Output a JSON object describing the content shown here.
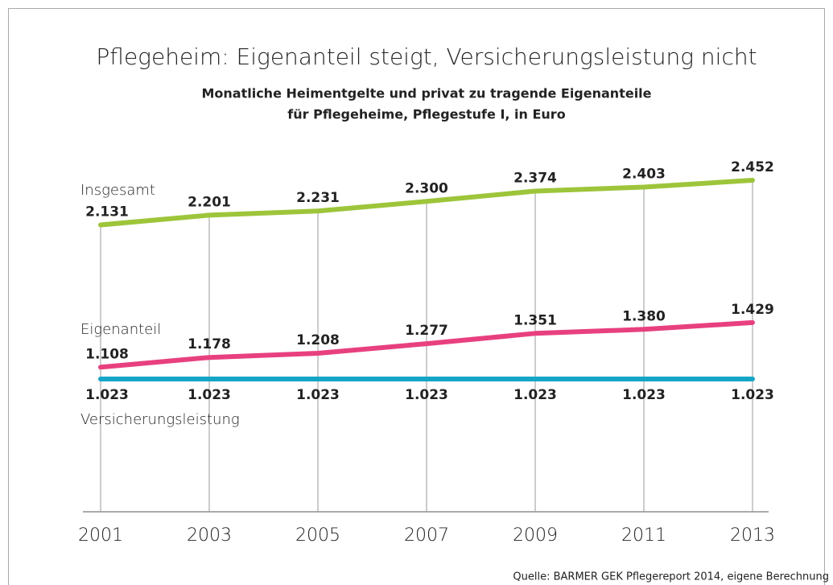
{
  "chart_data": {
    "type": "line",
    "title": "Pflegeheim: Eigenanteil steigt, Versicherungsleistung nicht",
    "subtitle": [
      "Monatliche Heimentgelte und privat zu tragende Eigenanteile",
      "für Pflegeheime, Pflegestufe I, in Euro"
    ],
    "categories": [
      "2001",
      "2003",
      "2005",
      "2007",
      "2009",
      "2011",
      "2013"
    ],
    "series": [
      {
        "name": "Insgesamt",
        "color": "#9dc53a",
        "values": [
          2131,
          2201,
          2231,
          2300,
          2374,
          2403,
          2452
        ],
        "value_labels": [
          "2.131",
          "2.201",
          "2.231",
          "2.300",
          "2.374",
          "2.403",
          "2.452"
        ]
      },
      {
        "name": "Eigenanteil",
        "color": "#e8407f",
        "values": [
          1108,
          1178,
          1208,
          1277,
          1351,
          1380,
          1429
        ],
        "value_labels": [
          "1.108",
          "1.178",
          "1.208",
          "1.277",
          "1.351",
          "1.380",
          "1.429"
        ]
      },
      {
        "name": "Versicherungsleistung",
        "color": "#15a5c7",
        "values": [
          1023,
          1023,
          1023,
          1023,
          1023,
          1023,
          1023
        ],
        "value_labels": [
          "1.023",
          "1.023",
          "1.023",
          "1.023",
          "1.023",
          "1.023",
          "1.023"
        ]
      }
    ],
    "source": "Quelle: BARMER GEK Pflegereport 2014, eigene Berechnung"
  }
}
